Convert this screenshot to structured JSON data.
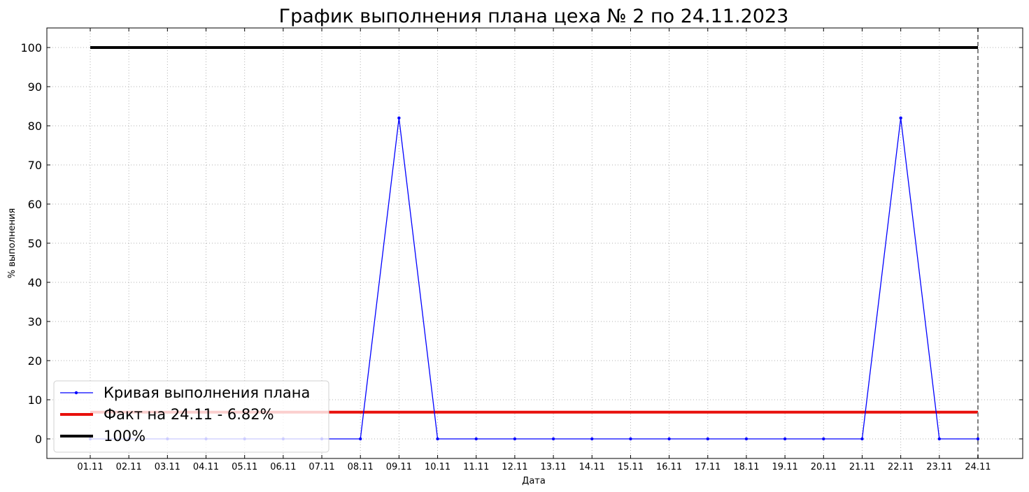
{
  "chart_data": {
    "type": "line",
    "title": "График выполнения плана цеха № 2 по 24.11.2023",
    "xlabel": "Дата",
    "ylabel": "% выполнения",
    "categories": [
      "01.11",
      "02.11",
      "03.11",
      "04.11",
      "05.11",
      "06.11",
      "07.11",
      "08.11",
      "09.11",
      "10.11",
      "11.11",
      "12.11",
      "13.11",
      "14.11",
      "15.11",
      "16.11",
      "17.11",
      "18.11",
      "19.11",
      "20.11",
      "21.11",
      "22.11",
      "23.11",
      "24.11"
    ],
    "yticks": [
      0,
      10,
      20,
      30,
      40,
      50,
      60,
      70,
      80,
      90,
      100
    ],
    "ylim": [
      -5,
      105
    ],
    "grid": true,
    "legend_position": "lower-left",
    "series": [
      {
        "name": "Кривая выполнения плана",
        "color": "#0000ff",
        "style": "line-with-markers",
        "values": [
          0,
          0,
          0,
          0,
          0,
          0,
          0,
          0,
          82,
          0,
          0,
          0,
          0,
          0,
          0,
          0,
          0,
          0,
          0,
          0,
          0,
          82,
          0,
          0
        ]
      },
      {
        "name": "Факт на 24.11 - 6.82%",
        "color": "#e8100c",
        "style": "horizontal-line",
        "value": 6.82
      },
      {
        "name": "100%",
        "color": "#000000",
        "style": "horizontal-line",
        "value": 100
      }
    ],
    "vline": {
      "category": "24.11",
      "color": "#808080",
      "style": "dashed"
    }
  }
}
